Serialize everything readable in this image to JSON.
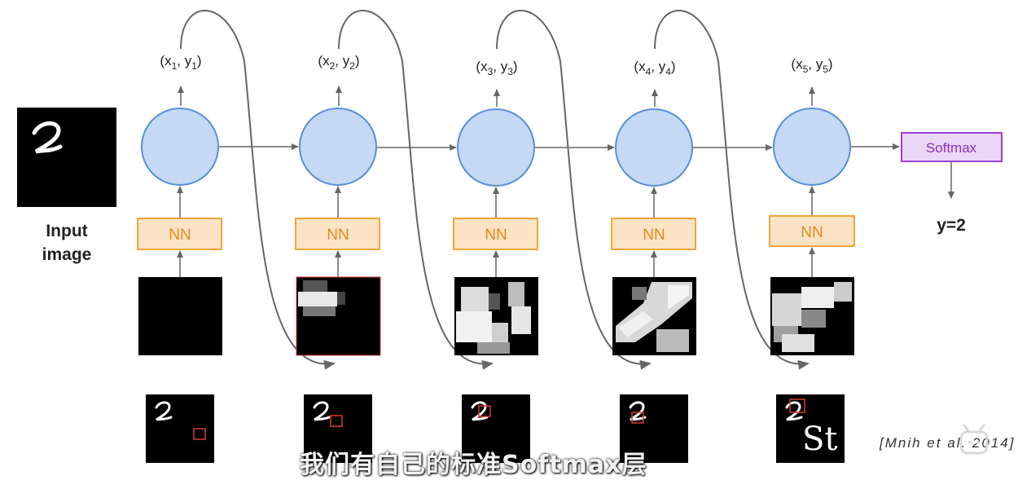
{
  "input": {
    "label_line1": "Input",
    "label_line2": "image"
  },
  "steps": [
    {
      "label": "(x1, y1)",
      "x_sub": "1",
      "y_sub": "1",
      "nn_label": "NN"
    },
    {
      "label": "(x2, y2)",
      "x_sub": "2",
      "y_sub": "2",
      "nn_label": "NN"
    },
    {
      "label": "(x3, y3)",
      "x_sub": "3",
      "y_sub": "3",
      "nn_label": "NN"
    },
    {
      "label": "(x4, y4)",
      "x_sub": "4",
      "y_sub": "4",
      "nn_label": "NN"
    },
    {
      "label": "(x5, y5)",
      "x_sub": "5",
      "y_sub": "5",
      "nn_label": "NN"
    }
  ],
  "softmax": {
    "label": "Softmax"
  },
  "output": {
    "label": "y=2"
  },
  "citation": "[Mnih et al. 2014]",
  "subtitle": "我们有自己的标准Softmax层",
  "overlay_text": "St",
  "colors": {
    "node_fill": "#c5d9f5",
    "node_stroke": "#5b8fd6",
    "nn_fill": "#fde3c5",
    "nn_stroke": "#f0a63a",
    "softmax_fill": "#ead7f7",
    "softmax_stroke": "#9b3fcf",
    "arrow": "#666666",
    "glimpse_box": "#d23b3b"
  }
}
